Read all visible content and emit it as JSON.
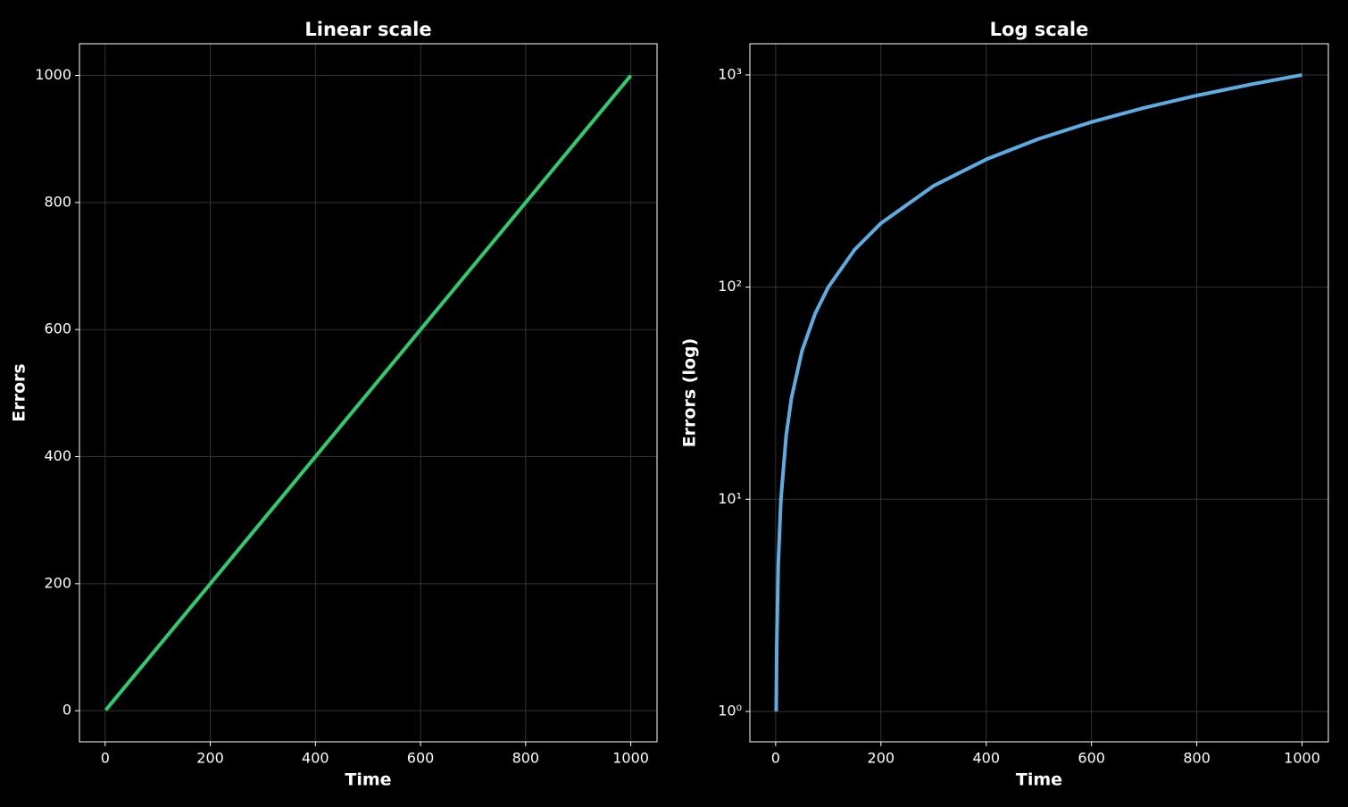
{
  "chart_data": [
    {
      "type": "line",
      "title": "Linear scale",
      "x_label": "Time",
      "y_label": "Errors",
      "x": [
        1,
        2,
        5,
        10,
        20,
        30,
        50,
        75,
        100,
        150,
        200,
        300,
        400,
        500,
        600,
        700,
        800,
        900,
        1000
      ],
      "series": [
        {
          "color": "#2ecc71",
          "values": [
            1,
            2,
            5,
            10,
            20,
            30,
            50,
            75,
            100,
            150,
            200,
            300,
            400,
            500,
            600,
            700,
            800,
            900,
            1000
          ]
        }
      ],
      "xlim": [
        -48.95,
        1049.95
      ],
      "xticks": [
        0,
        200,
        400,
        600,
        800,
        1000
      ],
      "ylim": [
        -48.95,
        1049.95
      ],
      "yticks": [
        0,
        200,
        400,
        600,
        800,
        1000
      ],
      "log_y": false,
      "grid": true
    },
    {
      "type": "line",
      "title": "Log scale",
      "x_label": "Time",
      "y_label": "Errors (log)",
      "x": [
        1,
        2,
        5,
        10,
        20,
        30,
        50,
        75,
        100,
        150,
        200,
        300,
        400,
        500,
        600,
        700,
        800,
        900,
        1000
      ],
      "series": [
        {
          "color": "#5dade2",
          "values": [
            1,
            2,
            5,
            10,
            20,
            30,
            50,
            75,
            100,
            150,
            200,
            300,
            400,
            500,
            600,
            700,
            800,
            900,
            1000
          ]
        }
      ],
      "xlim": [
        -48.95,
        1049.95
      ],
      "xticks": [
        0,
        200,
        400,
        600,
        800,
        1000
      ],
      "ylim": [
        0.719,
        1403
      ],
      "yticks": [
        {
          "value": 1,
          "label": "10⁰"
        },
        {
          "value": 10,
          "label": "10¹"
        },
        {
          "value": 100,
          "label": "10²"
        },
        {
          "value": 1000,
          "label": "10³"
        }
      ],
      "log_y": true,
      "grid": true
    }
  ]
}
